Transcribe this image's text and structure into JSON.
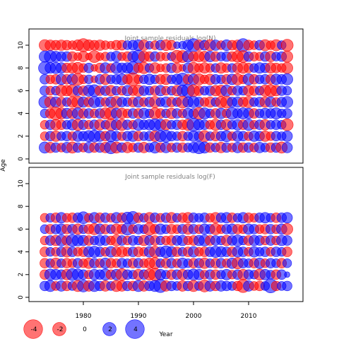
{
  "chart_data": {
    "type": "scatter",
    "subtype": "bubble-residuals",
    "xlabel": "Year",
    "ylabel": "Age",
    "x_range": [
      1972,
      2017
    ],
    "x_ticks": [
      1980,
      1990,
      2000,
      2010
    ],
    "y_ticks": [
      0,
      2,
      4,
      6,
      8,
      10
    ],
    "positive_color": "#0000ff",
    "negative_color": "#ff0000",
    "fill_alpha": 0.55,
    "legend": {
      "values": [
        -4,
        -2,
        0,
        2,
        4
      ],
      "labels": [
        "-4",
        "-2",
        "0",
        "2",
        "4"
      ],
      "placement": "bottom-left"
    },
    "panels": [
      {
        "title": "Joint sample residuals log(N)",
        "ylim": [
          0,
          10
        ],
        "ages": [
          1,
          2,
          3,
          4,
          5,
          6,
          7,
          8,
          9,
          10
        ],
        "years": [
          1973,
          2017
        ],
        "rows": [
          {
            "age": 10,
            "residuals": [
              -1.6,
              -1.4,
              -1.2,
              -1.4,
              -1.2,
              -1.0,
              -1.5,
              -2.2,
              -1.5,
              -1.2,
              -1.4,
              -1.0,
              -0.8,
              -1.2,
              -1.2,
              1.0,
              1.2,
              1.5,
              -1.4,
              0.8,
              -1.0,
              1.2,
              -1.5,
              -1.2,
              0.6,
              0.8,
              1.4,
              2.2,
              -1.4,
              1.2,
              -1.6,
              1.4,
              -1.0,
              1.5,
              -1.2,
              -1.4,
              2.2,
              -1.3,
              -1.0,
              1.2,
              -1.6,
              -1.0,
              -1.6,
              1.0,
              -1.8
            ]
          },
          {
            "age": 9,
            "residuals": [
              1.6,
              1.8,
              1.4,
              1.2,
              1.2,
              -1.2,
              -0.8,
              -1.4,
              -0.6,
              -1.8,
              -0.8,
              -1.0,
              1.0,
              1.4,
              -0.9,
              -1.2,
              1.4,
              2.2,
              -1.5,
              -1.2,
              1.2,
              -1.0,
              -0.9,
              0.9,
              -2.0,
              -1.8,
              1.6,
              -1.2,
              -1.4,
              -1.4,
              1.4,
              -1.2,
              1.0,
              1.2,
              -1.2,
              -1.6,
              -1.8,
              1.2,
              -1.0,
              -0.9,
              1.2,
              -1.4,
              1.0,
              1.2,
              -1.6
            ]
          },
          {
            "age": 8,
            "residuals": [
              2.0,
              1.4,
              1.6,
              1.4,
              -1.2,
              -1.4,
              -1.6,
              -1.0,
              1.2,
              -0.6,
              -1.2,
              1.4,
              -1.0,
              1.6,
              1.3,
              1.4,
              2.0,
              -1.2,
              -1.6,
              1.0,
              -1.4,
              -0.8,
              -1.0,
              1.2,
              -1.2,
              -0.6,
              1.3,
              -1.6,
              -1.0,
              -1.4,
              -1.0,
              1.0,
              -1.4,
              -1.0,
              1.0,
              -1.3,
              -1.5,
              -1.2,
              1.0,
              1.4,
              1.2,
              -1.4,
              -1.2,
              -1.0,
              -1.6
            ]
          },
          {
            "age": 7,
            "residuals": [
              1.2,
              -1.0,
              -1.2,
              1.4,
              -1.2,
              1.4,
              -1.8,
              -1.0,
              1.0,
              -0.6,
              1.2,
              -1.4,
              1.0,
              1.2,
              1.6,
              -1.2,
              -2.2,
              -1.0,
              1.0,
              1.4,
              1.0,
              -1.2,
              -1.4,
              1.0,
              1.4,
              2.0,
              -1.2,
              1.4,
              -1.6,
              -1.0,
              -1.4,
              1.2,
              1.0,
              -1.2,
              1.4,
              -1.6,
              -1.0,
              1.6,
              -1.2,
              1.0,
              1.2,
              -1.2,
              1.4,
              1.2,
              1.6
            ]
          },
          {
            "age": 6,
            "residuals": [
              1.2,
              -1.0,
              1.0,
              -1.6,
              -1.4,
              -1.8,
              1.2,
              -1.2,
              1.6,
              1.8,
              -1.2,
              1.2,
              -1.4,
              1.0,
              -1.0,
              1.4,
              -1.2,
              -1.6,
              1.2,
              1.0,
              -1.2,
              1.4,
              -1.0,
              1.0,
              -1.4,
              1.6,
              2.2,
              -1.8,
              -1.2,
              1.0,
              1.2,
              -1.4,
              -1.6,
              1.6,
              -1.0,
              1.2,
              1.0,
              -1.4,
              -1.2,
              1.0,
              -1.6,
              -1.8,
              -1.4,
              1.2,
              1.0
            ]
          },
          {
            "age": 5,
            "residuals": [
              1.8,
              -1.6,
              1.4,
              -1.2,
              1.0,
              -1.4,
              -1.8,
              1.4,
              -1.2,
              1.6,
              1.2,
              -1.0,
              1.4,
              -1.6,
              1.2,
              1.0,
              -1.2,
              1.4,
              -1.0,
              1.2,
              -1.6,
              1.0,
              1.4,
              -1.2,
              1.0,
              -1.8,
              1.4,
              1.6,
              1.2,
              -1.0,
              -1.4,
              1.0,
              -1.6,
              -1.8,
              1.2,
              1.4,
              -1.2,
              -1.6,
              1.0,
              1.2,
              -1.4,
              1.4,
              -1.0,
              1.2,
              1.6
            ]
          },
          {
            "age": 4,
            "residuals": [
              1.0,
              -1.2,
              -2.2,
              -1.6,
              1.4,
              -1.4,
              1.6,
              -1.2,
              1.2,
              -1.0,
              1.2,
              -1.6,
              -1.8,
              1.4,
              -1.4,
              -1.0,
              1.2,
              -1.2,
              1.4,
              1.0,
              -1.6,
              -1.2,
              1.0,
              -1.4,
              1.2,
              -1.0,
              1.4,
              1.2,
              -1.8,
              1.6,
              1.0,
              -1.2,
              1.4,
              -1.0,
              1.8,
              1.2,
              1.6,
              1.4,
              -1.2,
              1.0,
              1.4,
              1.2,
              1.6,
              1.0,
              1.2
            ]
          },
          {
            "age": 3,
            "residuals": [
              -1.0,
              1.2,
              -1.4,
              -1.2,
              1.0,
              1.4,
              -1.6,
              1.2,
              -1.0,
              1.2,
              -1.4,
              1.0,
              -1.8,
              1.4,
              -1.6,
              1.2,
              -1.0,
              1.6,
              1.2,
              1.4,
              1.8,
              1.6,
              -1.4,
              1.0,
              1.2,
              -1.2,
              -1.6,
              2.2,
              1.4,
              1.2,
              -1.0,
              -1.6,
              1.2,
              -1.4,
              1.0,
              1.4,
              -1.2,
              1.6,
              -1.0,
              1.2,
              -1.4,
              1.0,
              1.2,
              1.0,
              -1.8
            ]
          },
          {
            "age": 2,
            "residuals": [
              -1.0,
              1.2,
              -1.4,
              1.0,
              1.2,
              -1.0,
              1.4,
              1.2,
              1.6,
              1.8,
              1.4,
              -1.2,
              1.6,
              1.2,
              -1.0,
              1.2,
              1.4,
              -1.2,
              1.0,
              1.2,
              -1.4,
              1.6,
              1.8,
              1.2,
              1.0,
              -1.2,
              1.0,
              1.4,
              1.2,
              -1.6,
              1.0,
              -1.2,
              1.2,
              1.6,
              -1.0,
              1.4,
              1.2,
              -1.0,
              1.4,
              1.2,
              -1.4,
              -1.0,
              1.2,
              1.0,
              1.4
            ]
          },
          {
            "age": 1,
            "residuals": [
              1.6,
              -1.4,
              1.2,
              -1.0,
              1.4,
              -1.6,
              1.2,
              -1.0,
              1.4,
              -1.2,
              1.2,
              -1.4,
              2.0,
              -1.6,
              1.2,
              -1.4,
              -1.0,
              1.2,
              -1.4,
              1.0,
              1.6,
              -1.2,
              1.4,
              -1.0,
              1.2,
              -1.2,
              1.0,
              1.4,
              2.0,
              1.6,
              -1.2,
              1.0,
              -1.4,
              1.2,
              -1.0,
              1.4,
              -1.2,
              1.2,
              -1.0,
              1.4,
              1.0,
              -1.2,
              1.2,
              -1.6,
              1.4
            ]
          }
        ]
      },
      {
        "title": "Joint sample residuals log(F)",
        "ylim": [
          0,
          10
        ],
        "ages": [
          1,
          2,
          3,
          4,
          5,
          6,
          7
        ],
        "years": [
          1973,
          2017
        ],
        "rows": [
          {
            "age": 7,
            "residuals": [
              -1.0,
              1.0,
              -1.2,
              1.4,
              -1.0,
              -1.2,
              1.2,
              1.8,
              -1.0,
              1.4,
              -1.2,
              1.2,
              -1.0,
              1.4,
              -1.2,
              1.6,
              2.0,
              -1.2,
              1.0,
              -1.4,
              1.2,
              -1.0,
              1.2,
              -1.4,
              1.0,
              -1.2,
              -1.4,
              1.2,
              1.0,
              1.2,
              -1.0,
              -1.4,
              1.2,
              1.4,
              -1.2,
              1.0,
              1.4,
              -1.2,
              -1.0,
              1.2,
              1.4,
              1.0,
              -1.2,
              1.2,
              1.4
            ]
          },
          {
            "age": 6,
            "residuals": [
              1.0,
              -1.2,
              1.2,
              1.4,
              -1.2,
              1.2,
              -1.4,
              1.0,
              -1.2,
              -1.6,
              1.4,
              -1.2,
              1.0,
              -1.4,
              -1.2,
              1.8,
              -1.0,
              1.2,
              1.0,
              -2.0,
              -1.2,
              1.4,
              1.0,
              -1.2,
              -1.0,
              1.2,
              -1.4,
              1.2,
              -1.0,
              1.4,
              1.2,
              -1.6,
              -1.0,
              1.2,
              1.4,
              -1.2,
              -1.0,
              1.4,
              1.2,
              -1.0,
              -1.2,
              1.2,
              -1.0,
              1.4,
              -1.6
            ]
          },
          {
            "age": 5,
            "residuals": [
              -1.0,
              1.2,
              -1.4,
              1.6,
              -1.2,
              1.8,
              1.6,
              1.4,
              -1.2,
              1.0,
              1.4,
              1.2,
              -1.0,
              -1.6,
              1.2,
              -1.0,
              1.2,
              1.0,
              -1.4,
              1.2,
              -1.2,
              1.0,
              -1.0,
              -1.2,
              1.2,
              1.4,
              -1.0,
              -1.2,
              1.4,
              1.6,
              -1.2,
              1.2,
              1.0,
              -1.4,
              1.2,
              1.6,
              1.0,
              -1.2,
              1.4,
              1.2,
              -1.0,
              1.2,
              -1.0,
              1.4,
              1.2
            ]
          },
          {
            "age": 4,
            "residuals": [
              -1.2,
              1.0,
              -1.0,
              1.2,
              -1.4,
              1.2,
              -1.0,
              -1.2,
              1.4,
              1.6,
              1.2,
              -1.0,
              1.4,
              -1.2,
              -1.4,
              -1.0,
              1.2,
              -1.2,
              -1.0,
              1.4,
              -1.6,
              1.2,
              1.8,
              1.4,
              -1.2,
              1.0,
              -1.2,
              1.4,
              -1.0,
              -1.2,
              1.2,
              1.6,
              1.4,
              1.2,
              -1.2,
              1.4,
              1.2,
              -1.0,
              1.4,
              1.0,
              1.2,
              -1.0,
              1.2,
              1.0,
              -1.2
            ]
          },
          {
            "age": 3,
            "residuals": [
              -1.2,
              1.0,
              -1.4,
              1.0,
              -1.2,
              -1.0,
              1.2,
              -1.0,
              -1.4,
              1.2,
              -1.0,
              1.4,
              -1.2,
              -1.0,
              1.2,
              1.0,
              -1.2,
              1.2,
              -1.0,
              -1.4,
              -1.6,
              1.0,
              -1.2,
              1.2,
              -1.0,
              1.4,
              1.0,
              -1.2,
              1.2,
              -1.4,
              1.0,
              -1.2,
              1.2,
              -1.0,
              1.4,
              -1.6,
              1.2,
              1.0,
              -1.2,
              1.4,
              -1.0,
              1.2,
              1.0,
              -1.2,
              1.0
            ]
          },
          {
            "age": 2,
            "residuals": [
              -1.2,
              1.6,
              1.4,
              1.2,
              -1.4,
              1.8,
              1.6,
              1.2,
              -1.0,
              1.4,
              1.2,
              1.6,
              -1.2,
              1.4,
              -1.8,
              1.2,
              1.0,
              -1.4,
              1.2,
              -1.6,
              -2.0,
              1.4,
              1.0,
              -1.2,
              1.2,
              -1.4,
              1.2,
              1.6,
              1.4,
              -1.0,
              1.2,
              -1.2,
              1.0,
              1.4,
              -1.0,
              1.2,
              -1.4,
              1.2,
              1.0,
              -1.6,
              1.4,
              1.0,
              -1.2,
              1.2,
              0.4
            ]
          },
          {
            "age": 1,
            "residuals": [
              1.2,
              1.6,
              -1.0,
              1.4,
              -1.2,
              1.0,
              -1.6,
              1.8,
              -1.4,
              1.6,
              1.2,
              -1.4,
              1.0,
              -1.6,
              -1.4,
              1.2,
              -1.2,
              1.6,
              -1.4,
              1.2,
              1.6,
              2.2,
              -1.4,
              1.2,
              1.0,
              -1.4,
              1.2,
              -1.6,
              1.0,
              -1.8,
              1.4,
              -1.2,
              1.4,
              1.2,
              1.0,
              -1.2,
              -2.2,
              1.4,
              -1.0,
              -1.2,
              1.0,
              2.4,
              -1.2,
              1.0,
              1.2
            ]
          }
        ]
      }
    ]
  }
}
